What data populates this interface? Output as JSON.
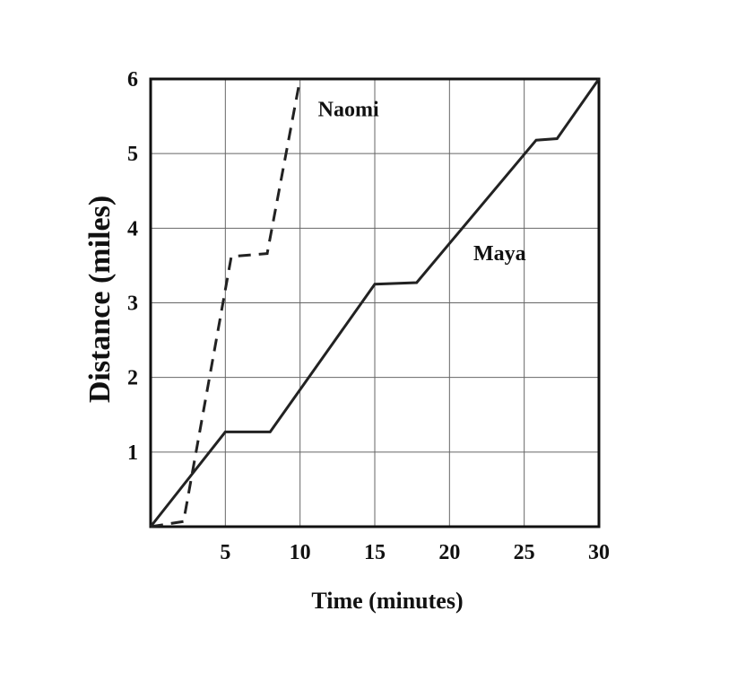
{
  "chart_data": {
    "type": "line",
    "xlabel": "Time (minutes)",
    "ylabel": "Distance (miles)",
    "xlim": [
      0,
      30
    ],
    "ylim": [
      0,
      6
    ],
    "x_ticks": [
      5,
      10,
      15,
      20,
      25,
      30
    ],
    "y_ticks": [
      1,
      2,
      3,
      4,
      5,
      6
    ],
    "grid": true,
    "series": [
      {
        "name": "Naomi",
        "style": "dashed",
        "color": "#222222",
        "points": [
          [
            0,
            0
          ],
          [
            2.2,
            0.07
          ],
          [
            5.4,
            3.62
          ],
          [
            7.8,
            3.66
          ],
          [
            10,
            6
          ]
        ]
      },
      {
        "name": "Maya",
        "style": "solid",
        "color": "#222222",
        "points": [
          [
            0,
            0
          ],
          [
            5,
            1.27
          ],
          [
            8,
            1.27
          ],
          [
            15,
            3.25
          ],
          [
            17.8,
            3.27
          ],
          [
            25.8,
            5.18
          ],
          [
            27.2,
            5.2
          ],
          [
            30,
            6
          ]
        ]
      }
    ],
    "annotations": [
      {
        "text": "Naomi",
        "x": 11.2,
        "y": 5.5
      },
      {
        "text": "Maya",
        "x": 21.6,
        "y": 3.57
      }
    ]
  }
}
